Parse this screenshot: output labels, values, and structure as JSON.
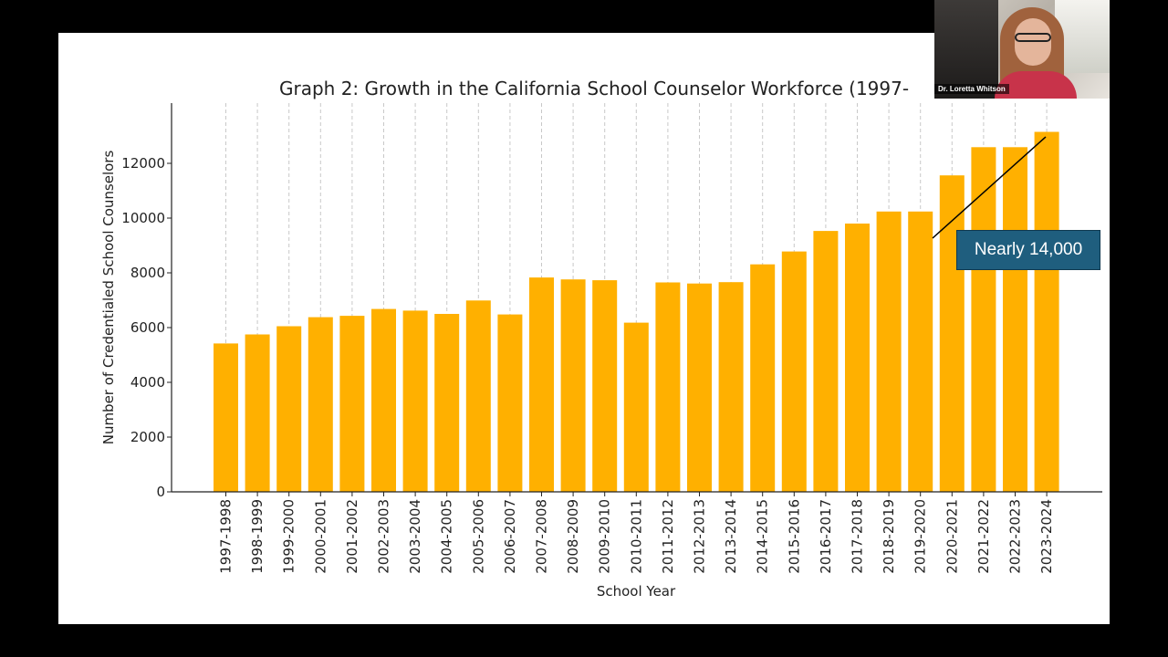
{
  "colors": {
    "bar": "#FFB000",
    "grid": "#c8c8c8",
    "axis": "#222222",
    "callout_bg": "#1f5e7e",
    "annotation_line": "#000000"
  },
  "participant": {
    "name": "Dr. Loretta Whitson",
    "icon": "video-participant-thumbnail"
  },
  "callout": {
    "text": "Nearly 14,000"
  },
  "chart_data": {
    "type": "bar",
    "title": "Graph 2: Growth in the California School Counselor Workforce (1997-",
    "xlabel": "School Year",
    "ylabel": "Number of Credentialed School Counselors",
    "ylim": [
      0,
      13800
    ],
    "yticks": [
      0,
      2000,
      4000,
      6000,
      8000,
      10000,
      12000
    ],
    "grid": "vertical dashed",
    "categories": [
      "1997-1998",
      "1998-1999",
      "1999-2000",
      "2000-2001",
      "2001-2002",
      "2002-2003",
      "2003-2004",
      "2004-2005",
      "2005-2006",
      "2006-2007",
      "2007-2008",
      "2008-2009",
      "2009-2010",
      "2010-2011",
      "2011-2012",
      "2012-2013",
      "2013-2014",
      "2014-2015",
      "2015-2016",
      "2016-2017",
      "2017-2018",
      "2018-2019",
      "2019-2020",
      "2020-2021",
      "2021-2022",
      "2022-2023",
      "2023-2024"
    ],
    "values": [
      5420,
      5750,
      6050,
      6380,
      6430,
      6680,
      6620,
      6500,
      6990,
      6480,
      7830,
      7760,
      7730,
      6180,
      7650,
      7610,
      7660,
      8310,
      8780,
      9530,
      9800,
      10240,
      10240,
      11560,
      12590,
      12590,
      13150
    ]
  }
}
